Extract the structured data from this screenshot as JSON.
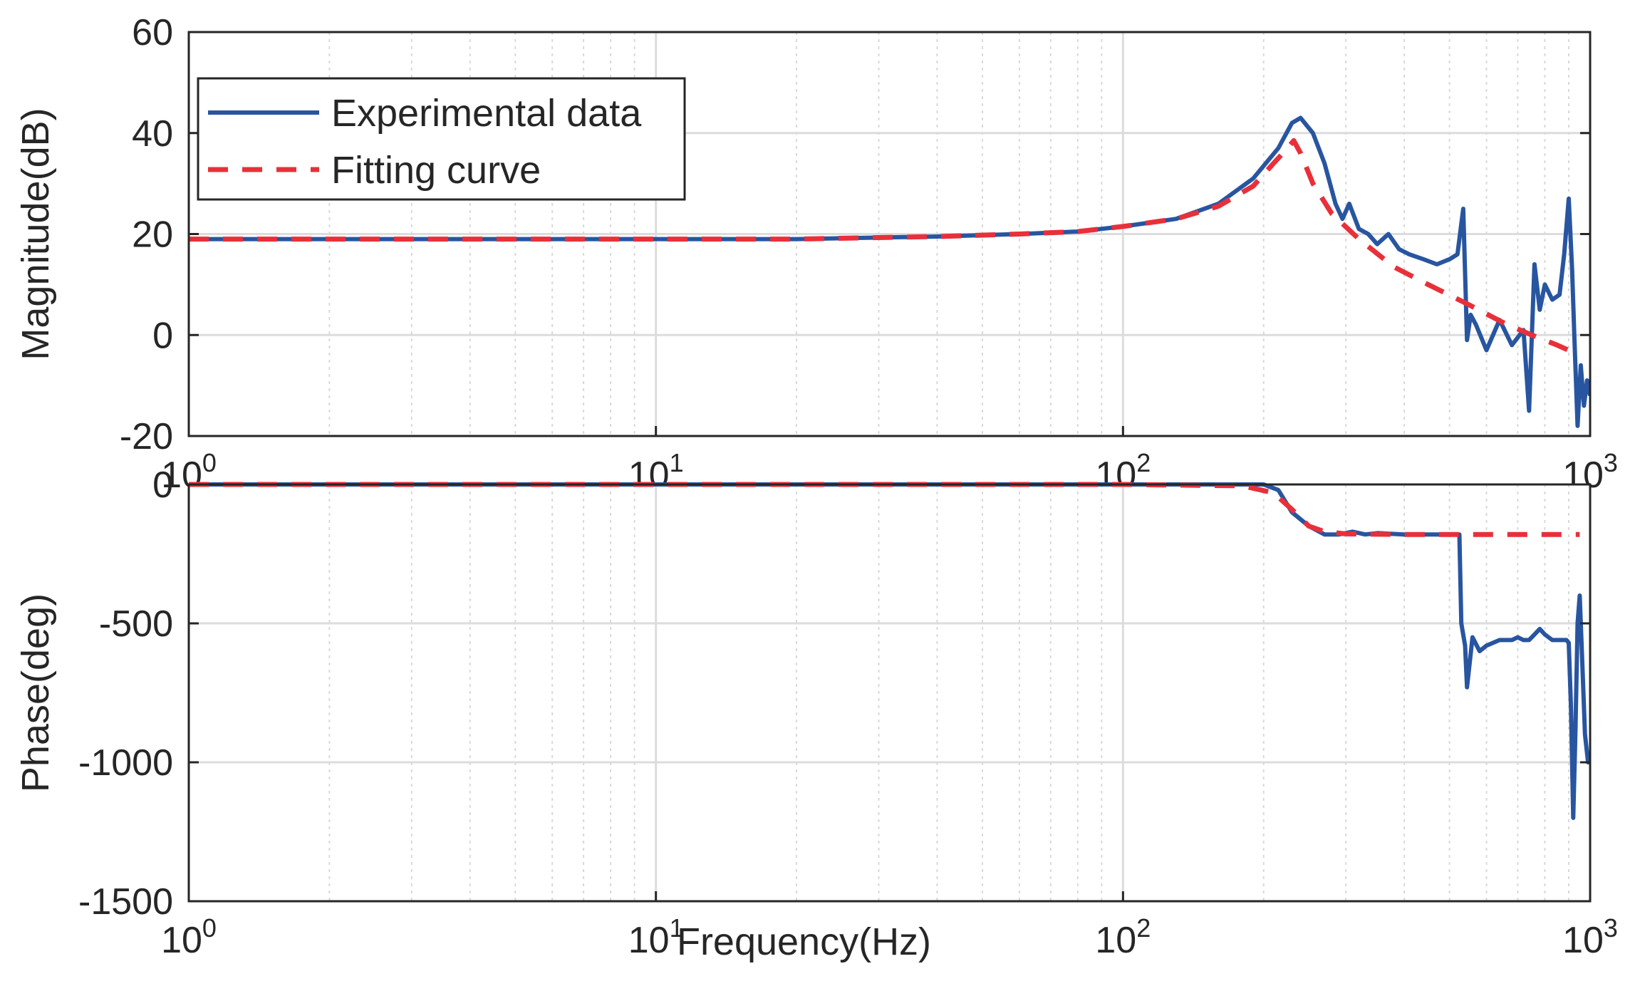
{
  "chart_data": [
    {
      "type": "line",
      "panel": "magnitude",
      "ylabel": "Magnitude(dB)",
      "xlabel": "",
      "xscale": "log",
      "xlim": [
        1,
        1000
      ],
      "ylim": [
        -20,
        60
      ],
      "yticks": [
        "60",
        "40",
        "20",
        "0",
        "-20"
      ],
      "ytick_values": [
        60,
        40,
        20,
        0,
        -20
      ],
      "xticks": [
        {
          "base": "10",
          "exp": "0"
        },
        {
          "base": "10",
          "exp": "1"
        },
        {
          "base": "10",
          "exp": "2"
        },
        {
          "base": "10",
          "exp": "3"
        }
      ],
      "xtick_values": [
        1,
        10,
        100,
        1000
      ],
      "grid": true,
      "legend": {
        "position": "top-left",
        "entries": [
          {
            "label": "Experimental data",
            "style": "solid",
            "color": "#2855a0"
          },
          {
            "label": "Fitting curve",
            "style": "dashed",
            "color": "#e8303a"
          }
        ]
      },
      "series": [
        {
          "name": "Experimental data",
          "color": "#2855a0",
          "x": [
            1,
            2,
            5,
            10,
            20,
            40,
            60,
            80,
            100,
            130,
            160,
            190,
            215,
            230,
            240,
            255,
            270,
            285,
            295,
            305,
            320,
            335,
            350,
            370,
            390,
            410,
            440,
            470,
            500,
            520,
            535,
            545,
            555,
            570,
            600,
            640,
            680,
            720,
            740,
            760,
            780,
            800,
            830,
            860,
            880,
            900,
            915,
            925,
            940,
            955,
            970,
            985,
            1000
          ],
          "values": [
            19,
            19,
            19,
            19,
            19,
            19.5,
            20,
            20.5,
            21.5,
            23,
            26,
            31,
            37,
            42,
            43,
            40,
            34,
            26,
            23,
            26,
            21,
            20,
            18,
            20,
            17,
            16,
            15,
            14,
            15,
            16,
            25,
            -1,
            4,
            2,
            -3,
            3,
            -2,
            1,
            -15,
            14,
            5,
            10,
            7,
            8,
            16,
            27,
            13,
            0,
            -18,
            -6,
            -14,
            -9,
            -12
          ]
        },
        {
          "name": "Fitting curve",
          "color": "#e8303a",
          "x": [
            1,
            2,
            5,
            10,
            20,
            40,
            60,
            80,
            100,
            130,
            160,
            190,
            210,
            225,
            232,
            240,
            255,
            280,
            320,
            380,
            450,
            550,
            650,
            750,
            850,
            950
          ],
          "values": [
            19,
            19,
            19,
            19,
            19,
            19.5,
            20,
            20.5,
            21.5,
            23,
            25.5,
            29.5,
            34,
            37,
            38.5,
            36,
            30,
            24,
            19,
            13.5,
            10,
            6,
            2.5,
            0,
            -2,
            -4
          ]
        }
      ]
    },
    {
      "type": "line",
      "panel": "phase",
      "ylabel": "Phase(deg)",
      "xlabel": "Frequency(Hz)",
      "xscale": "log",
      "xlim": [
        1,
        1000
      ],
      "ylim": [
        -1500,
        0
      ],
      "yticks": [
        "0",
        "-500",
        "-1000",
        "-1500"
      ],
      "ytick_values": [
        0,
        -500,
        -1000,
        -1500
      ],
      "xticks": [
        {
          "base": "10",
          "exp": "0"
        },
        {
          "base": "10",
          "exp": "1"
        },
        {
          "base": "10",
          "exp": "2"
        },
        {
          "base": "10",
          "exp": "3"
        }
      ],
      "xtick_values": [
        1,
        10,
        100,
        1000
      ],
      "grid": true,
      "series": [
        {
          "name": "Experimental data",
          "color": "#2855a0",
          "x": [
            1,
            10,
            100,
            150,
            200,
            215,
            230,
            250,
            270,
            290,
            310,
            330,
            350,
            400,
            450,
            500,
            525,
            530,
            540,
            545,
            560,
            580,
            600,
            640,
            680,
            700,
            720,
            740,
            760,
            780,
            800,
            830,
            860,
            890,
            900,
            910,
            920,
            930,
            940,
            950,
            960,
            975,
            990,
            1000
          ],
          "values": [
            0,
            0,
            0,
            0,
            0,
            -20,
            -100,
            -150,
            -180,
            -180,
            -170,
            -180,
            -175,
            -180,
            -180,
            -180,
            -180,
            -500,
            -580,
            -730,
            -550,
            -600,
            -580,
            -560,
            -560,
            -550,
            -560,
            -560,
            -540,
            -520,
            -540,
            -560,
            -560,
            -560,
            -570,
            -800,
            -1200,
            -900,
            -500,
            -400,
            -600,
            -900,
            -1000,
            -1000
          ]
        },
        {
          "name": "Fitting curve",
          "color": "#e8303a",
          "x": [
            1,
            10,
            100,
            180,
            210,
            230,
            250,
            270,
            300,
            400,
            500,
            700,
            950
          ],
          "values": [
            0,
            0,
            0,
            -5,
            -30,
            -90,
            -150,
            -170,
            -178,
            -180,
            -180,
            -180,
            -180
          ]
        }
      ]
    }
  ]
}
